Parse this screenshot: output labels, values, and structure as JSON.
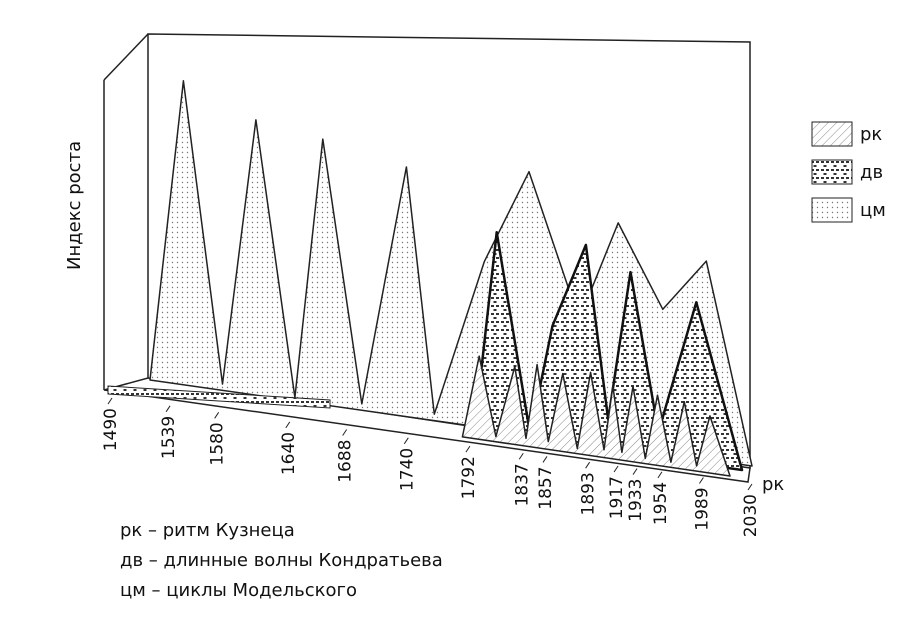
{
  "chart_data": {
    "type": "area",
    "ylabel": "Индекс роста",
    "x_ticks": [
      "1490",
      "1539",
      "1580",
      "1640",
      "1688",
      "1740",
      "1792",
      "1837",
      "1857",
      "1893",
      "1917",
      "1933",
      "1954",
      "1989",
      "2030"
    ],
    "depth_label": "рк",
    "legend": [
      {
        "key": "рк",
        "pattern": "diagonal-hatch"
      },
      {
        "key": "дв",
        "pattern": "brick"
      },
      {
        "key": "цм",
        "pattern": "dots"
      }
    ],
    "notes": [
      "рк – ритм Кузнеца",
      "дв – длинные волны Кондратьева",
      "цм – циклы Модельского"
    ],
    "series": [
      {
        "name": "цм",
        "years": [
          1490,
          1520,
          1555,
          1585,
          1620,
          1645,
          1680,
          1720,
          1745,
          1790,
          1830,
          1875,
          1910,
          1950,
          1989,
          2030
        ],
        "values": [
          0,
          95,
          2,
          86,
          1,
          83,
          2,
          78,
          2,
          52,
          82,
          38,
          70,
          45,
          62,
          0
        ]
      },
      {
        "name": "дв",
        "years": [
          1790,
          1810,
          1840,
          1860,
          1890,
          1910,
          1930,
          1955,
          1989,
          2030
        ],
        "values": [
          0,
          78,
          2,
          45,
          78,
          12,
          70,
          10,
          62,
          0
        ]
      },
      {
        "name": "рк",
        "years": [
          1790,
          1805,
          1820,
          1837,
          1847,
          1857,
          1867,
          1880,
          1893,
          1905,
          1917,
          1925,
          1933,
          1943,
          1954,
          1965,
          1977,
          1989,
          2000,
          2012,
          2030
        ],
        "values": [
          0,
          32,
          2,
          30,
          3,
          32,
          3,
          30,
          2,
          32,
          3,
          28,
          3,
          29,
          2,
          27,
          2,
          26,
          2,
          22,
          0
        ]
      }
    ]
  }
}
